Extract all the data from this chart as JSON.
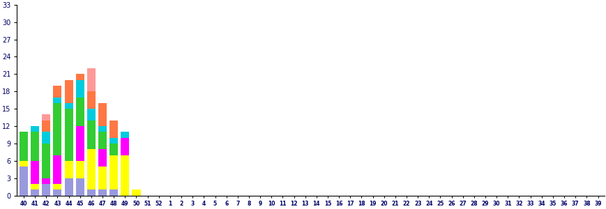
{
  "categories": [
    "40",
    "41",
    "42",
    "43",
    "44",
    "45",
    "46",
    "47",
    "48",
    "49",
    "50",
    "51",
    "52",
    "1",
    "2",
    "3",
    "4",
    "5",
    "6",
    "7",
    "8",
    "9",
    "10",
    "11",
    "12",
    "13",
    "14",
    "15",
    "16",
    "17",
    "18",
    "19",
    "20",
    "21",
    "22",
    "23",
    "24",
    "25",
    "26",
    "27",
    "28",
    "29",
    "30",
    "31",
    "32",
    "33",
    "34",
    "35",
    "36",
    "37",
    "38",
    "39"
  ],
  "series": {
    "blue": [
      5,
      1,
      2,
      1,
      3,
      3,
      1,
      1,
      1,
      0,
      0,
      0,
      0,
      0,
      0,
      0,
      0,
      0,
      0,
      0,
      0,
      0,
      0,
      0,
      0,
      0,
      0,
      0,
      0,
      0,
      0,
      0,
      0,
      0,
      0,
      0,
      0,
      0,
      0,
      0,
      0,
      0,
      0,
      0,
      0,
      0,
      0,
      0,
      0,
      0,
      0,
      0
    ],
    "yellow": [
      1,
      1,
      0,
      1,
      3,
      3,
      7,
      4,
      6,
      7,
      1,
      0,
      0,
      0,
      0,
      0,
      0,
      0,
      0,
      0,
      0,
      0,
      0,
      0,
      0,
      0,
      0,
      0,
      0,
      0,
      0,
      0,
      0,
      0,
      0,
      0,
      0,
      0,
      0,
      0,
      0,
      0,
      0,
      0,
      0,
      0,
      0,
      0,
      0,
      0,
      0,
      0
    ],
    "magenta": [
      0,
      4,
      1,
      5,
      0,
      6,
      0,
      3,
      0,
      3,
      0,
      0,
      0,
      0,
      0,
      0,
      0,
      0,
      0,
      0,
      0,
      0,
      0,
      0,
      0,
      0,
      0,
      0,
      0,
      0,
      0,
      0,
      0,
      0,
      0,
      0,
      0,
      0,
      0,
      0,
      0,
      0,
      0,
      0,
      0,
      0,
      0,
      0,
      0,
      0,
      0,
      0
    ],
    "green": [
      5,
      5,
      6,
      9,
      9,
      5,
      5,
      3,
      2,
      0,
      0,
      0,
      0,
      0,
      0,
      0,
      0,
      0,
      0,
      0,
      0,
      0,
      0,
      0,
      0,
      0,
      0,
      0,
      0,
      0,
      0,
      0,
      0,
      0,
      0,
      0,
      0,
      0,
      0,
      0,
      0,
      0,
      0,
      0,
      0,
      0,
      0,
      0,
      0,
      0,
      0,
      0
    ],
    "cyan": [
      0,
      1,
      2,
      1,
      1,
      3,
      2,
      1,
      1,
      1,
      0,
      0,
      0,
      0,
      0,
      0,
      0,
      0,
      0,
      0,
      0,
      0,
      0,
      0,
      0,
      0,
      0,
      0,
      0,
      0,
      0,
      0,
      0,
      0,
      0,
      0,
      0,
      0,
      0,
      0,
      0,
      0,
      0,
      0,
      0,
      0,
      0,
      0,
      0,
      0,
      0,
      0
    ],
    "orange": [
      0,
      0,
      2,
      2,
      4,
      1,
      3,
      4,
      3,
      0,
      0,
      0,
      0,
      0,
      0,
      0,
      0,
      0,
      0,
      0,
      0,
      0,
      0,
      0,
      0,
      0,
      0,
      0,
      0,
      0,
      0,
      0,
      0,
      0,
      0,
      0,
      0,
      0,
      0,
      0,
      0,
      0,
      0,
      0,
      0,
      0,
      0,
      0,
      0,
      0,
      0,
      0
    ],
    "salmon": [
      0,
      0,
      1,
      0,
      0,
      0,
      4,
      0,
      0,
      0,
      0,
      0,
      0,
      0,
      0,
      0,
      0,
      0,
      0,
      0,
      0,
      0,
      0,
      0,
      0,
      0,
      0,
      0,
      0,
      0,
      0,
      0,
      0,
      0,
      0,
      0,
      0,
      0,
      0,
      0,
      0,
      0,
      0,
      0,
      0,
      0,
      0,
      0,
      0,
      0,
      0,
      0
    ]
  },
  "colors": {
    "blue": "#9999dd",
    "yellow": "#ffff00",
    "magenta": "#ff00ff",
    "green": "#33cc33",
    "cyan": "#00ccdd",
    "orange": "#ff7744",
    "salmon": "#ff9999"
  },
  "ylim": [
    0,
    33
  ],
  "yticks": [
    0,
    3,
    6,
    9,
    12,
    15,
    18,
    21,
    24,
    27,
    30,
    33
  ],
  "tick_color": "#cc6600",
  "label_color": "#000066",
  "bg_color": "#ffffff"
}
